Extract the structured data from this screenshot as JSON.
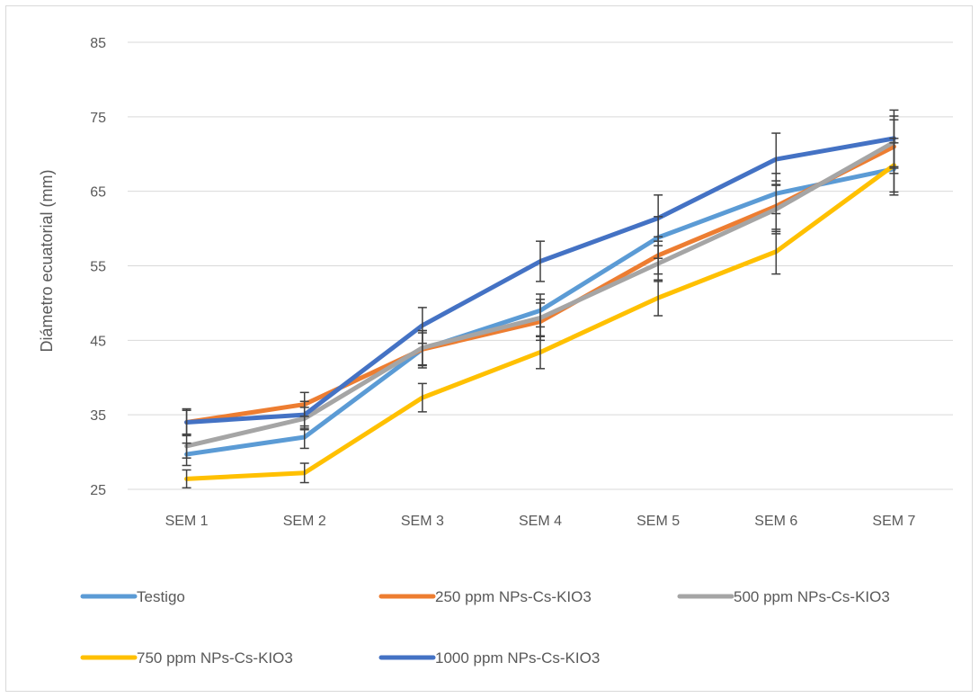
{
  "chart_data": {
    "type": "line",
    "title": "",
    "xlabel": "",
    "ylabel": "Diámetro ecuatorial (mm)",
    "ylim": [
      25,
      85
    ],
    "yticks": [
      25,
      35,
      45,
      55,
      65,
      75,
      85
    ],
    "grid": true,
    "legend_position": "bottom",
    "categories": [
      "SEM 1",
      "SEM 2",
      "SEM 3",
      "SEM 4",
      "SEM 5",
      "SEM 6",
      "SEM 7"
    ],
    "series": [
      {
        "name": "Testigo",
        "color": "#5b9bd5",
        "values": [
          29.7,
          32,
          43.8,
          49,
          58.8,
          64.7,
          68
        ],
        "errors": [
          1.5,
          1.5,
          2.5,
          2.2,
          2.8,
          2.7,
          3.5
        ]
      },
      {
        "name": "250 ppm NPs-Cs-KIO3",
        "color": "#ed7d31",
        "values": [
          34,
          36.4,
          43.8,
          47.5,
          56.4,
          63,
          71
        ],
        "errors": [
          1.6,
          1.6,
          2.2,
          2.5,
          2.5,
          3.4,
          3.6
        ]
      },
      {
        "name": "500 ppm NPs-Cs-KIO3",
        "color": "#a5a5a5",
        "values": [
          30.8,
          34.5,
          44,
          48,
          55.3,
          62.6,
          71.6
        ],
        "errors": [
          1.6,
          1.5,
          2.3,
          2.5,
          2.4,
          3.3,
          3.5
        ]
      },
      {
        "name": "750 ppm NPs-Cs-KIO3",
        "color": "#ffc000",
        "values": [
          26.4,
          27.2,
          37.3,
          43.4,
          50.7,
          56.9,
          68.5
        ],
        "errors": [
          1.2,
          1.3,
          1.9,
          2.2,
          2.4,
          3,
          3.6
        ]
      },
      {
        "name": "1000 ppm NPs-Cs-KIO3",
        "color": "#4472c4",
        "values": [
          34,
          35,
          47,
          55.6,
          61.4,
          69.3,
          72.1
        ],
        "errors": [
          1.8,
          1.8,
          2.4,
          2.7,
          3.1,
          3.5,
          3.8
        ]
      }
    ]
  }
}
